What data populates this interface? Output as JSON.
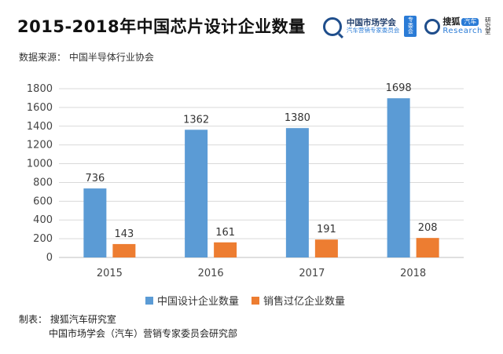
{
  "title": "2015-2018年中国芯片设计企业数量",
  "source": "数据来源：  中国半导体行业协会",
  "logos": {
    "org_name": "中国市场学会",
    "org_sub": "汽车营销专家委员会",
    "org_badge": "专委会",
    "sohu": "搜狐",
    "auto": "汽车",
    "research": "Research",
    "room": "研究室"
  },
  "colors": {
    "series1": "#5b9bd5",
    "series2": "#ed7d31",
    "axis_text": "#444",
    "grid": "#d9d9d9"
  },
  "chart_data": {
    "type": "bar",
    "categories": [
      "2015",
      "2016",
      "2017",
      "2018"
    ],
    "series": [
      {
        "name": "中国设计企业数量",
        "values": [
          736,
          1362,
          1380,
          1698
        ]
      },
      {
        "name": "销售过亿企业数量",
        "values": [
          143,
          161,
          191,
          208
        ]
      }
    ],
    "ylim": [
      0,
      1800
    ],
    "yticks": [
      0,
      200,
      400,
      600,
      800,
      1000,
      1200,
      1400,
      1600,
      1800
    ],
    "grid": true,
    "legend_position": "bottom"
  },
  "credit": {
    "line1": "制表：  搜狐汽车研究室",
    "line2": "中国市场学会（汽车）营销专家委员会研究部"
  }
}
